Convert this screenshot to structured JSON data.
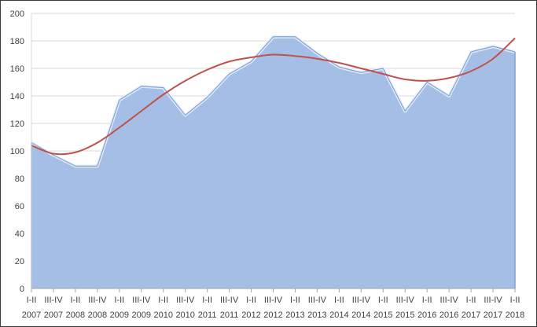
{
  "chart_data": {
    "type": "area",
    "ylim": [
      0,
      200
    ],
    "yticks": [
      0,
      20,
      40,
      60,
      80,
      100,
      120,
      140,
      160,
      180,
      200
    ],
    "grid": true,
    "legend": "none",
    "xlabel": "",
    "ylabel": "",
    "categories": [
      [
        "I-II",
        "2007"
      ],
      [
        "III-IV",
        "2007"
      ],
      [
        "I-II",
        "2008"
      ],
      [
        "III-IV",
        "2008"
      ],
      [
        "I-II",
        "2009"
      ],
      [
        "III-IV",
        "2009"
      ],
      [
        "I-II",
        "2010"
      ],
      [
        "III-IV",
        "2010"
      ],
      [
        "I-II",
        "2011"
      ],
      [
        "III-IV",
        "2011"
      ],
      [
        "I-II",
        "2012"
      ],
      [
        "III-IV",
        "2012"
      ],
      [
        "I-II",
        "2013"
      ],
      [
        "III-IV",
        "2013"
      ],
      [
        "I-II",
        "2014"
      ],
      [
        "III-IV",
        "2014"
      ],
      [
        "I-II",
        "2015"
      ],
      [
        "III-IV",
        "2015"
      ],
      [
        "I-II",
        "2016"
      ],
      [
        "III-IV",
        "2016"
      ],
      [
        "I-II",
        "2017"
      ],
      [
        "III-IV",
        "2017"
      ],
      [
        "I-II",
        "2018"
      ]
    ],
    "series": [
      {
        "kind": "area",
        "values": [
          106,
          97,
          89,
          89,
          137,
          147,
          146,
          126,
          139,
          156,
          165,
          183,
          183,
          171,
          161,
          157,
          160,
          129,
          150,
          140,
          172,
          176,
          172
        ],
        "color": "#a4bee6",
        "edge_color": "#7ea2d6"
      },
      {
        "kind": "trendline",
        "values": [
          104,
          98,
          99,
          106,
          117,
          129,
          141,
          151,
          159,
          165,
          168,
          170,
          169,
          167,
          164,
          160,
          156,
          152,
          151,
          153,
          158,
          167,
          182
        ],
        "color": "#c0504d"
      }
    ]
  }
}
